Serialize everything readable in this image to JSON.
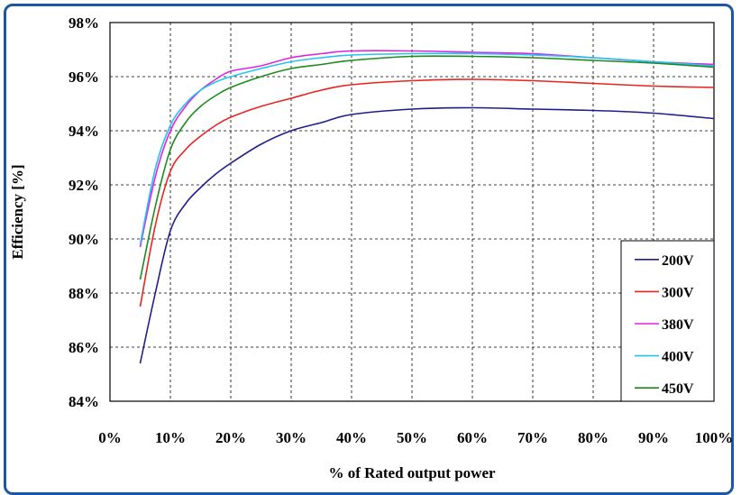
{
  "chart_data": {
    "type": "line",
    "xlabel": "% of Rated output power",
    "ylabel": "Efficiency [%]",
    "xlim": [
      0,
      100
    ],
    "ylim": [
      84,
      98
    ],
    "x_ticks": [
      "0%",
      "10%",
      "20%",
      "30%",
      "40%",
      "50%",
      "60%",
      "70%",
      "80%",
      "90%",
      "100%"
    ],
    "y_ticks": [
      "84%",
      "86%",
      "88%",
      "90%",
      "92%",
      "94%",
      "96%",
      "98%"
    ],
    "grid": true,
    "legend_position": "bottom-right",
    "series": [
      {
        "name": "200V",
        "color": "#1f1f8c",
        "x": [
          5,
          7.5,
          10,
          12.5,
          15,
          17.5,
          20,
          25,
          30,
          35,
          40,
          50,
          60,
          70,
          80,
          90,
          100
        ],
        "y": [
          85.4,
          88.0,
          90.3,
          91.3,
          91.9,
          92.4,
          92.8,
          93.5,
          94.0,
          94.3,
          94.6,
          94.8,
          94.85,
          94.8,
          94.75,
          94.65,
          94.45
        ]
      },
      {
        "name": "300V",
        "color": "#e8251f",
        "x": [
          5,
          7.5,
          10,
          12.5,
          15,
          17.5,
          20,
          25,
          30,
          35,
          40,
          50,
          60,
          70,
          80,
          90,
          100
        ],
        "y": [
          87.5,
          90.5,
          92.5,
          93.3,
          93.8,
          94.2,
          94.5,
          94.9,
          95.2,
          95.5,
          95.7,
          95.85,
          95.9,
          95.85,
          95.75,
          95.65,
          95.6
        ]
      },
      {
        "name": "380V",
        "color": "#e024e0",
        "x": [
          5,
          7.5,
          10,
          12.5,
          15,
          17.5,
          20,
          25,
          30,
          35,
          40,
          50,
          60,
          70,
          80,
          90,
          100
        ],
        "y": [
          89.7,
          92.3,
          94.0,
          94.9,
          95.5,
          95.9,
          96.2,
          96.4,
          96.7,
          96.85,
          96.95,
          96.95,
          96.9,
          96.85,
          96.7,
          96.55,
          96.45
        ]
      },
      {
        "name": "400V",
        "color": "#22c4f0",
        "x": [
          5,
          7.5,
          10,
          12.5,
          15,
          17.5,
          20,
          25,
          30,
          35,
          40,
          50,
          60,
          70,
          80,
          90,
          100
        ],
        "y": [
          89.8,
          92.6,
          94.2,
          95.0,
          95.5,
          95.8,
          96.0,
          96.3,
          96.55,
          96.7,
          96.8,
          96.85,
          96.85,
          96.8,
          96.7,
          96.55,
          96.4
        ]
      },
      {
        "name": "450V",
        "color": "#1e8a1e",
        "x": [
          5,
          7.5,
          10,
          12.5,
          15,
          17.5,
          20,
          25,
          30,
          35,
          40,
          50,
          60,
          70,
          80,
          90,
          100
        ],
        "y": [
          88.5,
          91.2,
          93.3,
          94.3,
          94.9,
          95.3,
          95.6,
          96.0,
          96.3,
          96.45,
          96.6,
          96.75,
          96.75,
          96.7,
          96.6,
          96.5,
          96.35
        ]
      }
    ]
  }
}
